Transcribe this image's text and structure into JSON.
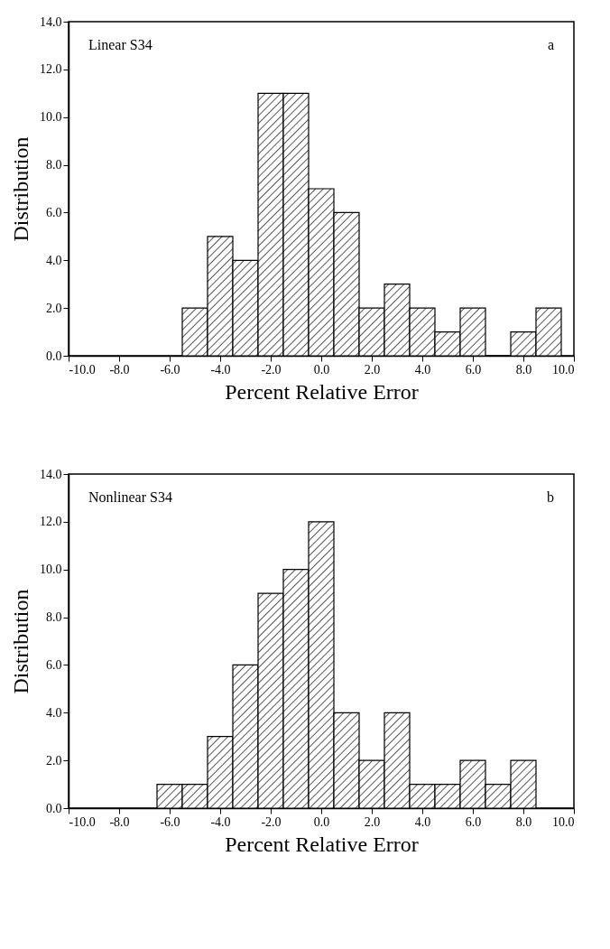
{
  "chart_data": [
    {
      "type": "histogram",
      "xlabel": "Percent Relative Error",
      "ylabel": "Distribution",
      "annotations": [
        "Linear S34",
        "a"
      ],
      "bins": [
        -5.5,
        -4.5,
        -3.5,
        -2.5,
        -1.5,
        -0.5,
        0.5,
        1.5,
        2.5,
        3.5,
        4.5,
        5.5,
        6.5,
        7.5,
        8.5,
        9.5
      ],
      "values": [
        2,
        5,
        4,
        11,
        11,
        7,
        6,
        2,
        3,
        2,
        1,
        2,
        0,
        1,
        2
      ],
      "color": "#000000",
      "xlim": [
        -10,
        10
      ],
      "xticks": [
        {
          "value": -10,
          "label": "-10.0"
        },
        {
          "value": -8,
          "label": "-8.0"
        },
        {
          "value": -6,
          "label": "-6.0"
        },
        {
          "value": -4,
          "label": "-4.0"
        },
        {
          "value": -2,
          "label": "-2.0"
        },
        {
          "value": 0,
          "label": "0.0"
        },
        {
          "value": 2,
          "label": "2.0"
        },
        {
          "value": 4,
          "label": "4.0"
        },
        {
          "value": 6,
          "label": "6.0"
        },
        {
          "value": 8,
          "label": "8.0"
        },
        {
          "value": 10,
          "label": "10.0"
        }
      ],
      "ylim": [
        0,
        14
      ],
      "yticks": [
        {
          "value": 0,
          "label": "0.0"
        },
        {
          "value": 2,
          "label": "2.0"
        },
        {
          "value": 4,
          "label": "4.0"
        },
        {
          "value": 6,
          "label": "6.0"
        },
        {
          "value": 8,
          "label": "8.0"
        },
        {
          "value": 10,
          "label": "10.0"
        },
        {
          "value": 12,
          "label": "12.0"
        },
        {
          "value": 14,
          "label": "14.0"
        }
      ],
      "grid": false
    },
    {
      "type": "histogram",
      "xlabel": "Percent Relative Error",
      "ylabel": "Distribution",
      "annotations": [
        "Nonlinear S34",
        "b"
      ],
      "bins": [
        -6.5,
        -5.5,
        -4.5,
        -3.5,
        -2.5,
        -1.5,
        -0.5,
        0.5,
        1.5,
        2.5,
        3.5,
        4.5,
        5.5,
        6.5,
        7.5,
        8.5
      ],
      "values": [
        1,
        1,
        3,
        6,
        9,
        10,
        12,
        4,
        2,
        4,
        1,
        1,
        2,
        1,
        2
      ],
      "color": "#000000",
      "xlim": [
        -10,
        10
      ],
      "xticks": [
        {
          "value": -10,
          "label": "-10.0"
        },
        {
          "value": -8,
          "label": "-8.0"
        },
        {
          "value": -6,
          "label": "-6.0"
        },
        {
          "value": -4,
          "label": "-4.0"
        },
        {
          "value": -2,
          "label": "-2.0"
        },
        {
          "value": 0,
          "label": "0.0"
        },
        {
          "value": 2,
          "label": "2.0"
        },
        {
          "value": 4,
          "label": "4.0"
        },
        {
          "value": 6,
          "label": "6.0"
        },
        {
          "value": 8,
          "label": "8.0"
        },
        {
          "value": 10,
          "label": "10.0"
        }
      ],
      "ylim": [
        0,
        14
      ],
      "yticks": [
        {
          "value": 0,
          "label": "0.0"
        },
        {
          "value": 2,
          "label": "2.0"
        },
        {
          "value": 4,
          "label": "4.0"
        },
        {
          "value": 6,
          "label": "6.0"
        },
        {
          "value": 8,
          "label": "8.0"
        },
        {
          "value": 10,
          "label": "10.0"
        },
        {
          "value": 12,
          "label": "12.0"
        },
        {
          "value": 14,
          "label": "14.0"
        }
      ],
      "grid": false
    }
  ]
}
